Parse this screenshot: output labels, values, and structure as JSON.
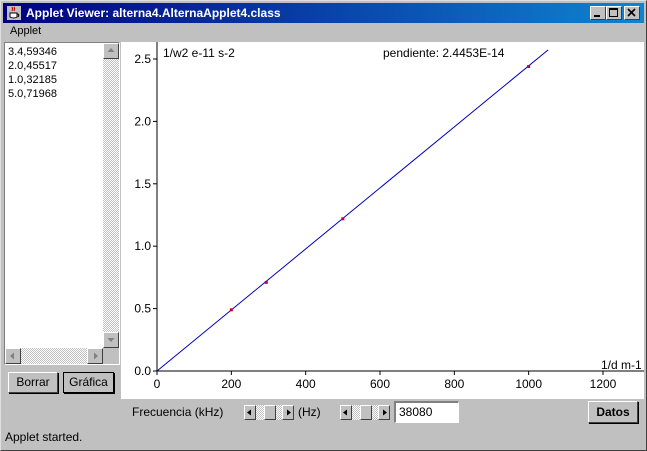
{
  "window": {
    "title": "Applet Viewer: alterna4.AlternaApplet4.class",
    "menu": [
      "Applet"
    ]
  },
  "data_list": [
    "3.4,59346",
    "2.0,45517",
    "1.0,32185",
    "5.0,71968"
  ],
  "buttons": {
    "borrar": "Borrar",
    "grafica": "Gráfica",
    "datos": "Datos"
  },
  "controls": {
    "freq_label": "Frecuencia (kHz)",
    "hz_label": "(Hz)",
    "hz_value": "38080"
  },
  "status": "Applet started.",
  "chart_data": {
    "type": "scatter",
    "ylabel": "1/w2 e-11 s-2",
    "xlabel": "1/d m-1",
    "annotation": "pendiente: 2.4453E-14",
    "xlim": [
      0,
      1200
    ],
    "ylim": [
      0,
      2.5
    ],
    "xticks": [
      "0",
      "200",
      "400",
      "600",
      "800",
      "1000",
      "1200"
    ],
    "yticks": [
      "0.0",
      "0.5",
      "1.0",
      "1.5",
      "2.0",
      "2.5"
    ],
    "points": [
      {
        "x": 200,
        "y": 0.49
      },
      {
        "x": 294,
        "y": 0.71
      },
      {
        "x": 500,
        "y": 1.22
      },
      {
        "x": 1000,
        "y": 2.44
      }
    ],
    "fit_line": {
      "slope": 0.0024453,
      "intercept": 0
    },
    "colors": {
      "line": "#0000c0",
      "points": "#c00040"
    }
  }
}
